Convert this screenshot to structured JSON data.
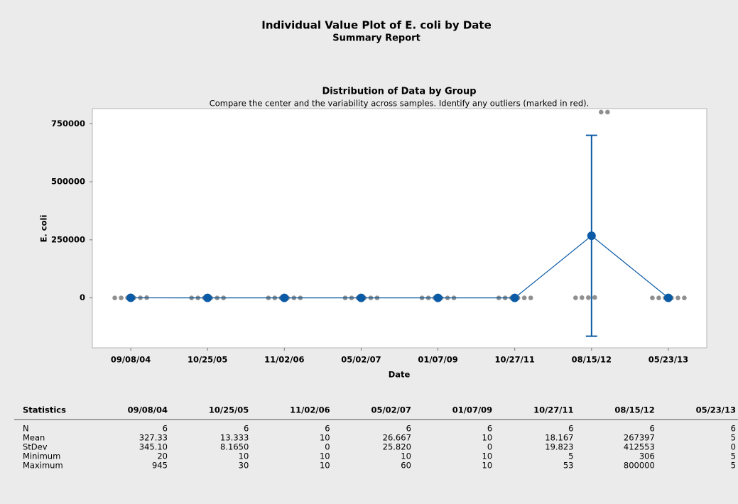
{
  "chart_data": {
    "type": "individual_value",
    "title": "Individual Value Plot of E. coli by Date",
    "subtitle": "Summary Report",
    "plot_title": "Distribution of Data by Group",
    "plot_subtitle": "Compare the center and the variability across samples. Identify any outliers (marked in red).",
    "x_label": "Date",
    "y_label": "E. coli",
    "categories": [
      "09/08/04",
      "10/25/05",
      "11/02/06",
      "05/02/07",
      "01/07/09",
      "10/27/11",
      "08/15/12",
      "05/23/13"
    ],
    "points": [
      [
        20,
        100,
        200,
        300,
        399,
        945
      ],
      [
        10,
        10,
        10,
        10,
        10,
        30
      ],
      [
        10,
        10,
        10,
        10,
        10,
        10
      ],
      [
        10,
        10,
        10,
        10,
        60,
        60
      ],
      [
        10,
        10,
        10,
        10,
        10,
        10
      ],
      [
        5,
        5,
        5,
        5,
        36,
        53
      ],
      [
        306,
        1000,
        1200,
        1876,
        800000,
        800000
      ],
      [
        5,
        5,
        5,
        5,
        5,
        5
      ]
    ],
    "means": [
      327.33,
      13.333,
      10,
      26.667,
      10,
      18.167,
      267397,
      5
    ],
    "intervals": [
      null,
      null,
      null,
      null,
      null,
      null,
      [
        -165000,
        700000
      ],
      null
    ],
    "point_color": "#8f8f8f",
    "mean_color": "#0b5aa5",
    "ylim": [
      -215000,
      815000
    ],
    "yticks": [
      0,
      250000,
      500000,
      750000
    ]
  },
  "table": {
    "header": "Statistics",
    "rows": [
      {
        "label": "N",
        "cells": [
          "6",
          "6",
          "6",
          "6",
          "6",
          "6",
          "6",
          "6"
        ]
      },
      {
        "label": "Mean",
        "cells": [
          "327.33",
          "13.333",
          "10",
          "26.667",
          "10",
          "18.167",
          "267397",
          "5"
        ]
      },
      {
        "label": "StDev",
        "cells": [
          "345.10",
          "8.1650",
          "0",
          "25.820",
          "0",
          "19.823",
          "412553",
          "0"
        ]
      },
      {
        "label": "Minimum",
        "cells": [
          "20",
          "10",
          "10",
          "10",
          "10",
          "5",
          "306",
          "5"
        ]
      },
      {
        "label": "Maximum",
        "cells": [
          "945",
          "30",
          "10",
          "60",
          "10",
          "53",
          "800000",
          "5"
        ]
      }
    ]
  }
}
